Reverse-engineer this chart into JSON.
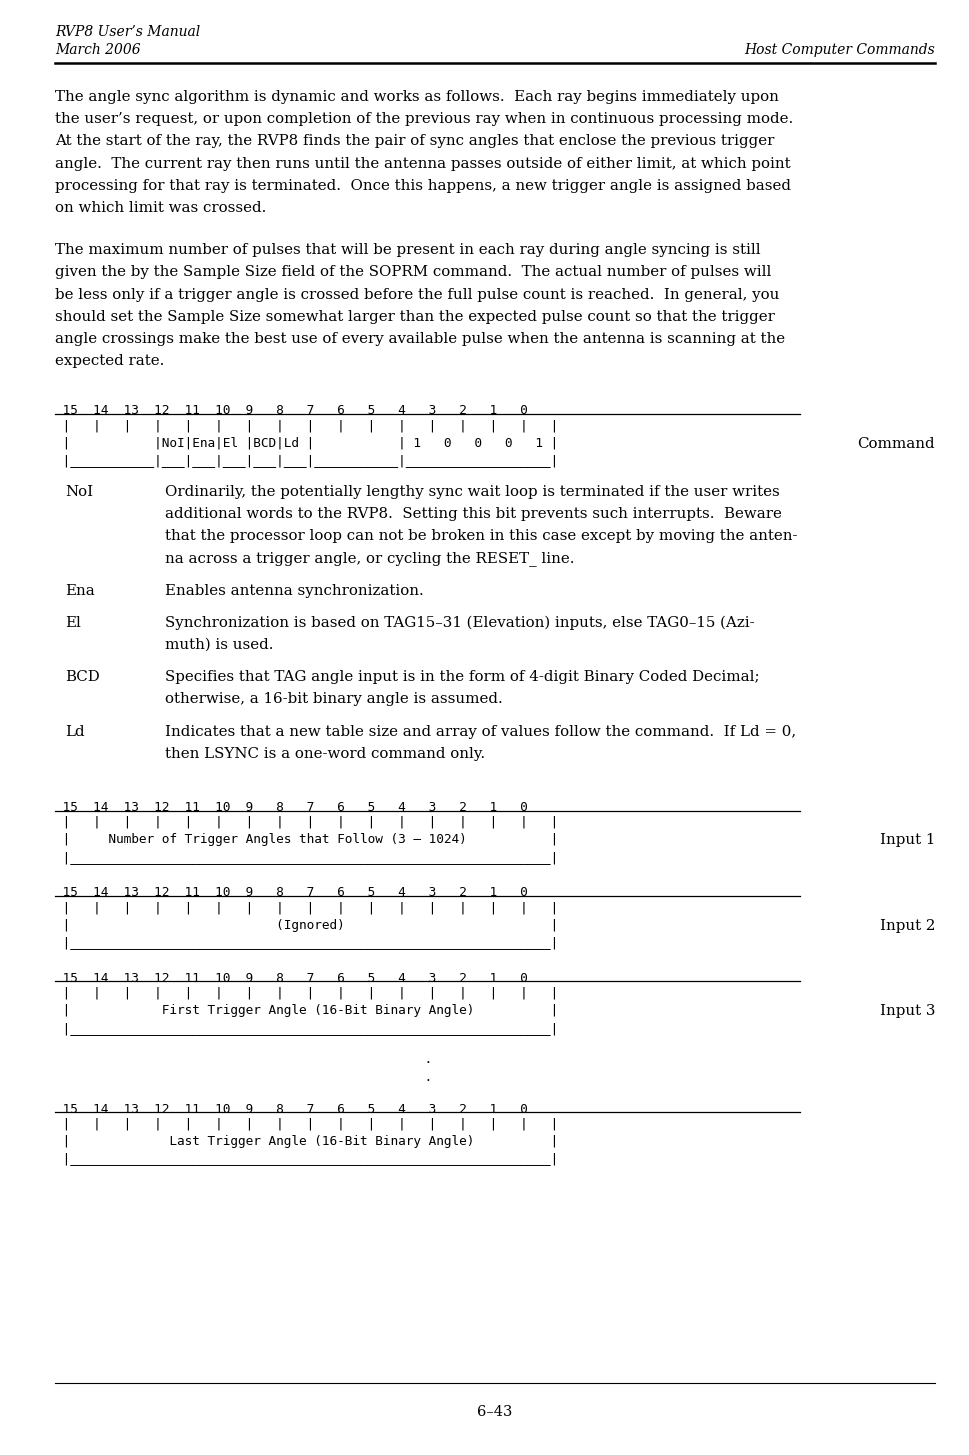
{
  "header_left_1": "RVP8 User’s Manual",
  "header_left_2": "March 2006",
  "header_right": "Host Computer Commands",
  "footer": "6–43",
  "para1": "The angle sync algorithm is dynamic and works as follows.  Each ray begins immediately upon\nthe user’s request, or upon completion of the previous ray when in continuous processing mode.\nAt the start of the ray, the RVP8 finds the pair of sync angles that enclose the previous trigger\nangle.  The current ray then runs until the antenna passes outside of either limit, at which point\nprocessing for that ray is terminated.  Once this happens, a new trigger angle is assigned based\non which limit was crossed.",
  "para2": "The maximum number of pulses that will be present in each ray during angle syncing is still\ngiven the by the Sample Size field of the SOPRM command.  The actual number of pulses will\nbe less only if a trigger angle is crossed before the full pulse count is reached.  In general, you\nshould set the Sample Size somewhat larger than the expected pulse count so that the trigger\nangle crossings make the best use of every available pulse when the antenna is scanning at the\nexpected rate.",
  "diag1_bits": " 15  14  13  12  11  10  9   8   7   6   5   4   3   2   1   0",
  "diag1_row1": " |   |   |   |   |   |   |   |   |   |   |   |   |   |   |   |   |",
  "diag1_row2": " |           |NoI|Ena|El |BCD|Ld |           | 1   0   0   0   1 |",
  "diag1_row3": " |___________|___|___|___|___|___|___________|___________________|",
  "diag1_label": "Command",
  "fields": [
    {
      "name": "NoI",
      "desc": "Ordinarily, the potentially lengthy sync wait loop is terminated if the user writes\nadditional words to the RVP8.  Setting this bit prevents such interrupts.  Beware\nthat the processor loop can not be broken in this case except by moving the anten-\nna across a trigger angle, or cycling the RESET_ line."
    },
    {
      "name": "Ena",
      "desc": "Enables antenna synchronization."
    },
    {
      "name": "El",
      "desc": "Synchronization is based on TAG15–31 (Elevation) inputs, else TAG0–15 (Azi-\nmuth) is used."
    },
    {
      "name": "BCD",
      "desc": "Specifies that TAG angle input is in the form of 4-digit Binary Coded Decimal;\notherwise, a 16-bit binary angle is assumed."
    },
    {
      "name": "Ld",
      "desc": "Indicates that a new table size and array of values follow the command.  If Ld = 0,\nthen LSYNC is a one-word command only."
    }
  ],
  "diag_in1_bits": " 15  14  13  12  11  10  9   8   7   6   5   4   3   2   1   0",
  "diag_in1_row1": " |   |   |   |   |   |   |   |   |   |   |   |   |   |   |   |   |",
  "diag_in1_row2": " |     Number of Trigger Angles that Follow (3 – 1024)           |",
  "diag_in1_row3": " |_______________________________________________________________|",
  "diag_in1_label": "Input 1",
  "diag_in2_bits": " 15  14  13  12  11  10  9   8   7   6   5   4   3   2   1   0",
  "diag_in2_row1": " |   |   |   |   |   |   |   |   |   |   |   |   |   |   |   |   |",
  "diag_in2_row2": " |                           (Ignored)                           |",
  "diag_in2_row3": " |_______________________________________________________________|",
  "diag_in2_label": "Input 2",
  "diag_in3_bits": " 15  14  13  12  11  10  9   8   7   6   5   4   3   2   1   0",
  "diag_in3_row1": " |   |   |   |   |   |   |   |   |   |   |   |   |   |   |   |   |",
  "diag_in3_row2": " |            First Trigger Angle (16-Bit Binary Angle)          |",
  "diag_in3_row3": " |_______________________________________________________________|",
  "diag_in3_label": "Input 3",
  "diag_last_bits": " 15  14  13  12  11  10  9   8   7   6   5   4   3   2   1   0",
  "diag_last_row1": " |   |   |   |   |   |   |   |   |   |   |   |   |   |   |   |   |",
  "diag_last_row2": " |             Last Trigger Angle (16-Bit Binary Angle)          |",
  "diag_last_row3": " |_______________________________________________________________|",
  "bg_color": "#ffffff"
}
